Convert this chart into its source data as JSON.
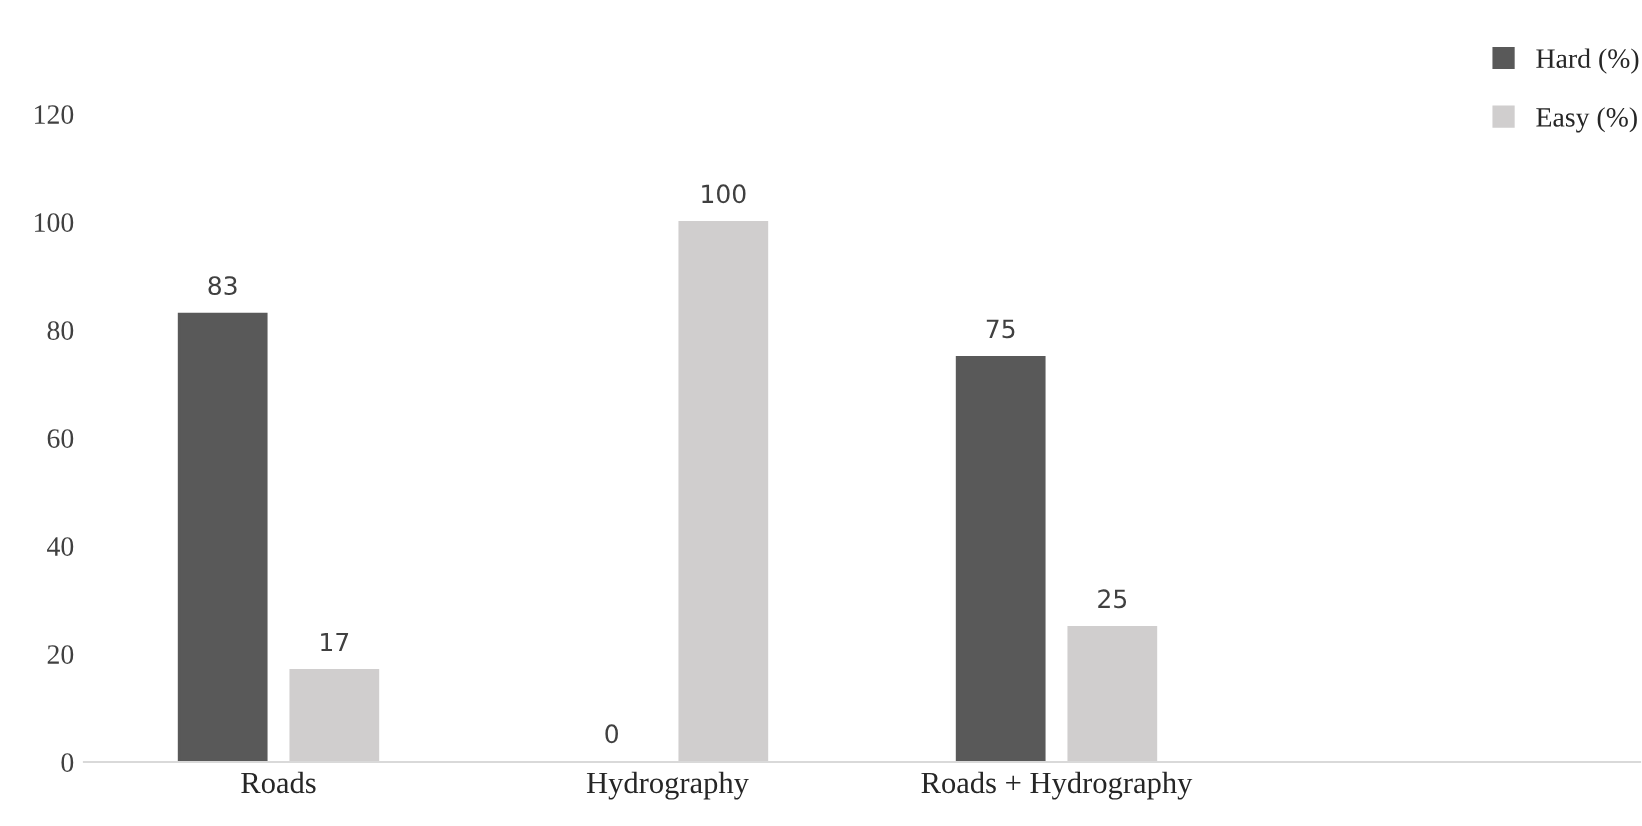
{
  "chart_data": {
    "type": "bar",
    "categories": [
      "Roads",
      "Hydrography",
      "Roads + Hydrography",
      null
    ],
    "series": [
      {
        "name": "Hard (%)",
        "color": "#595959",
        "values": [
          83,
          0,
          75,
          null
        ]
      },
      {
        "name": "Easy (%)",
        "color": "#d0cece",
        "values": [
          17,
          100,
          25,
          null
        ]
      }
    ],
    "ylim": [
      0,
      120
    ],
    "yticks": [
      0,
      20,
      40,
      60,
      80,
      100,
      120
    ],
    "grid": false,
    "legend": "top right",
    "data_labels": true
  }
}
